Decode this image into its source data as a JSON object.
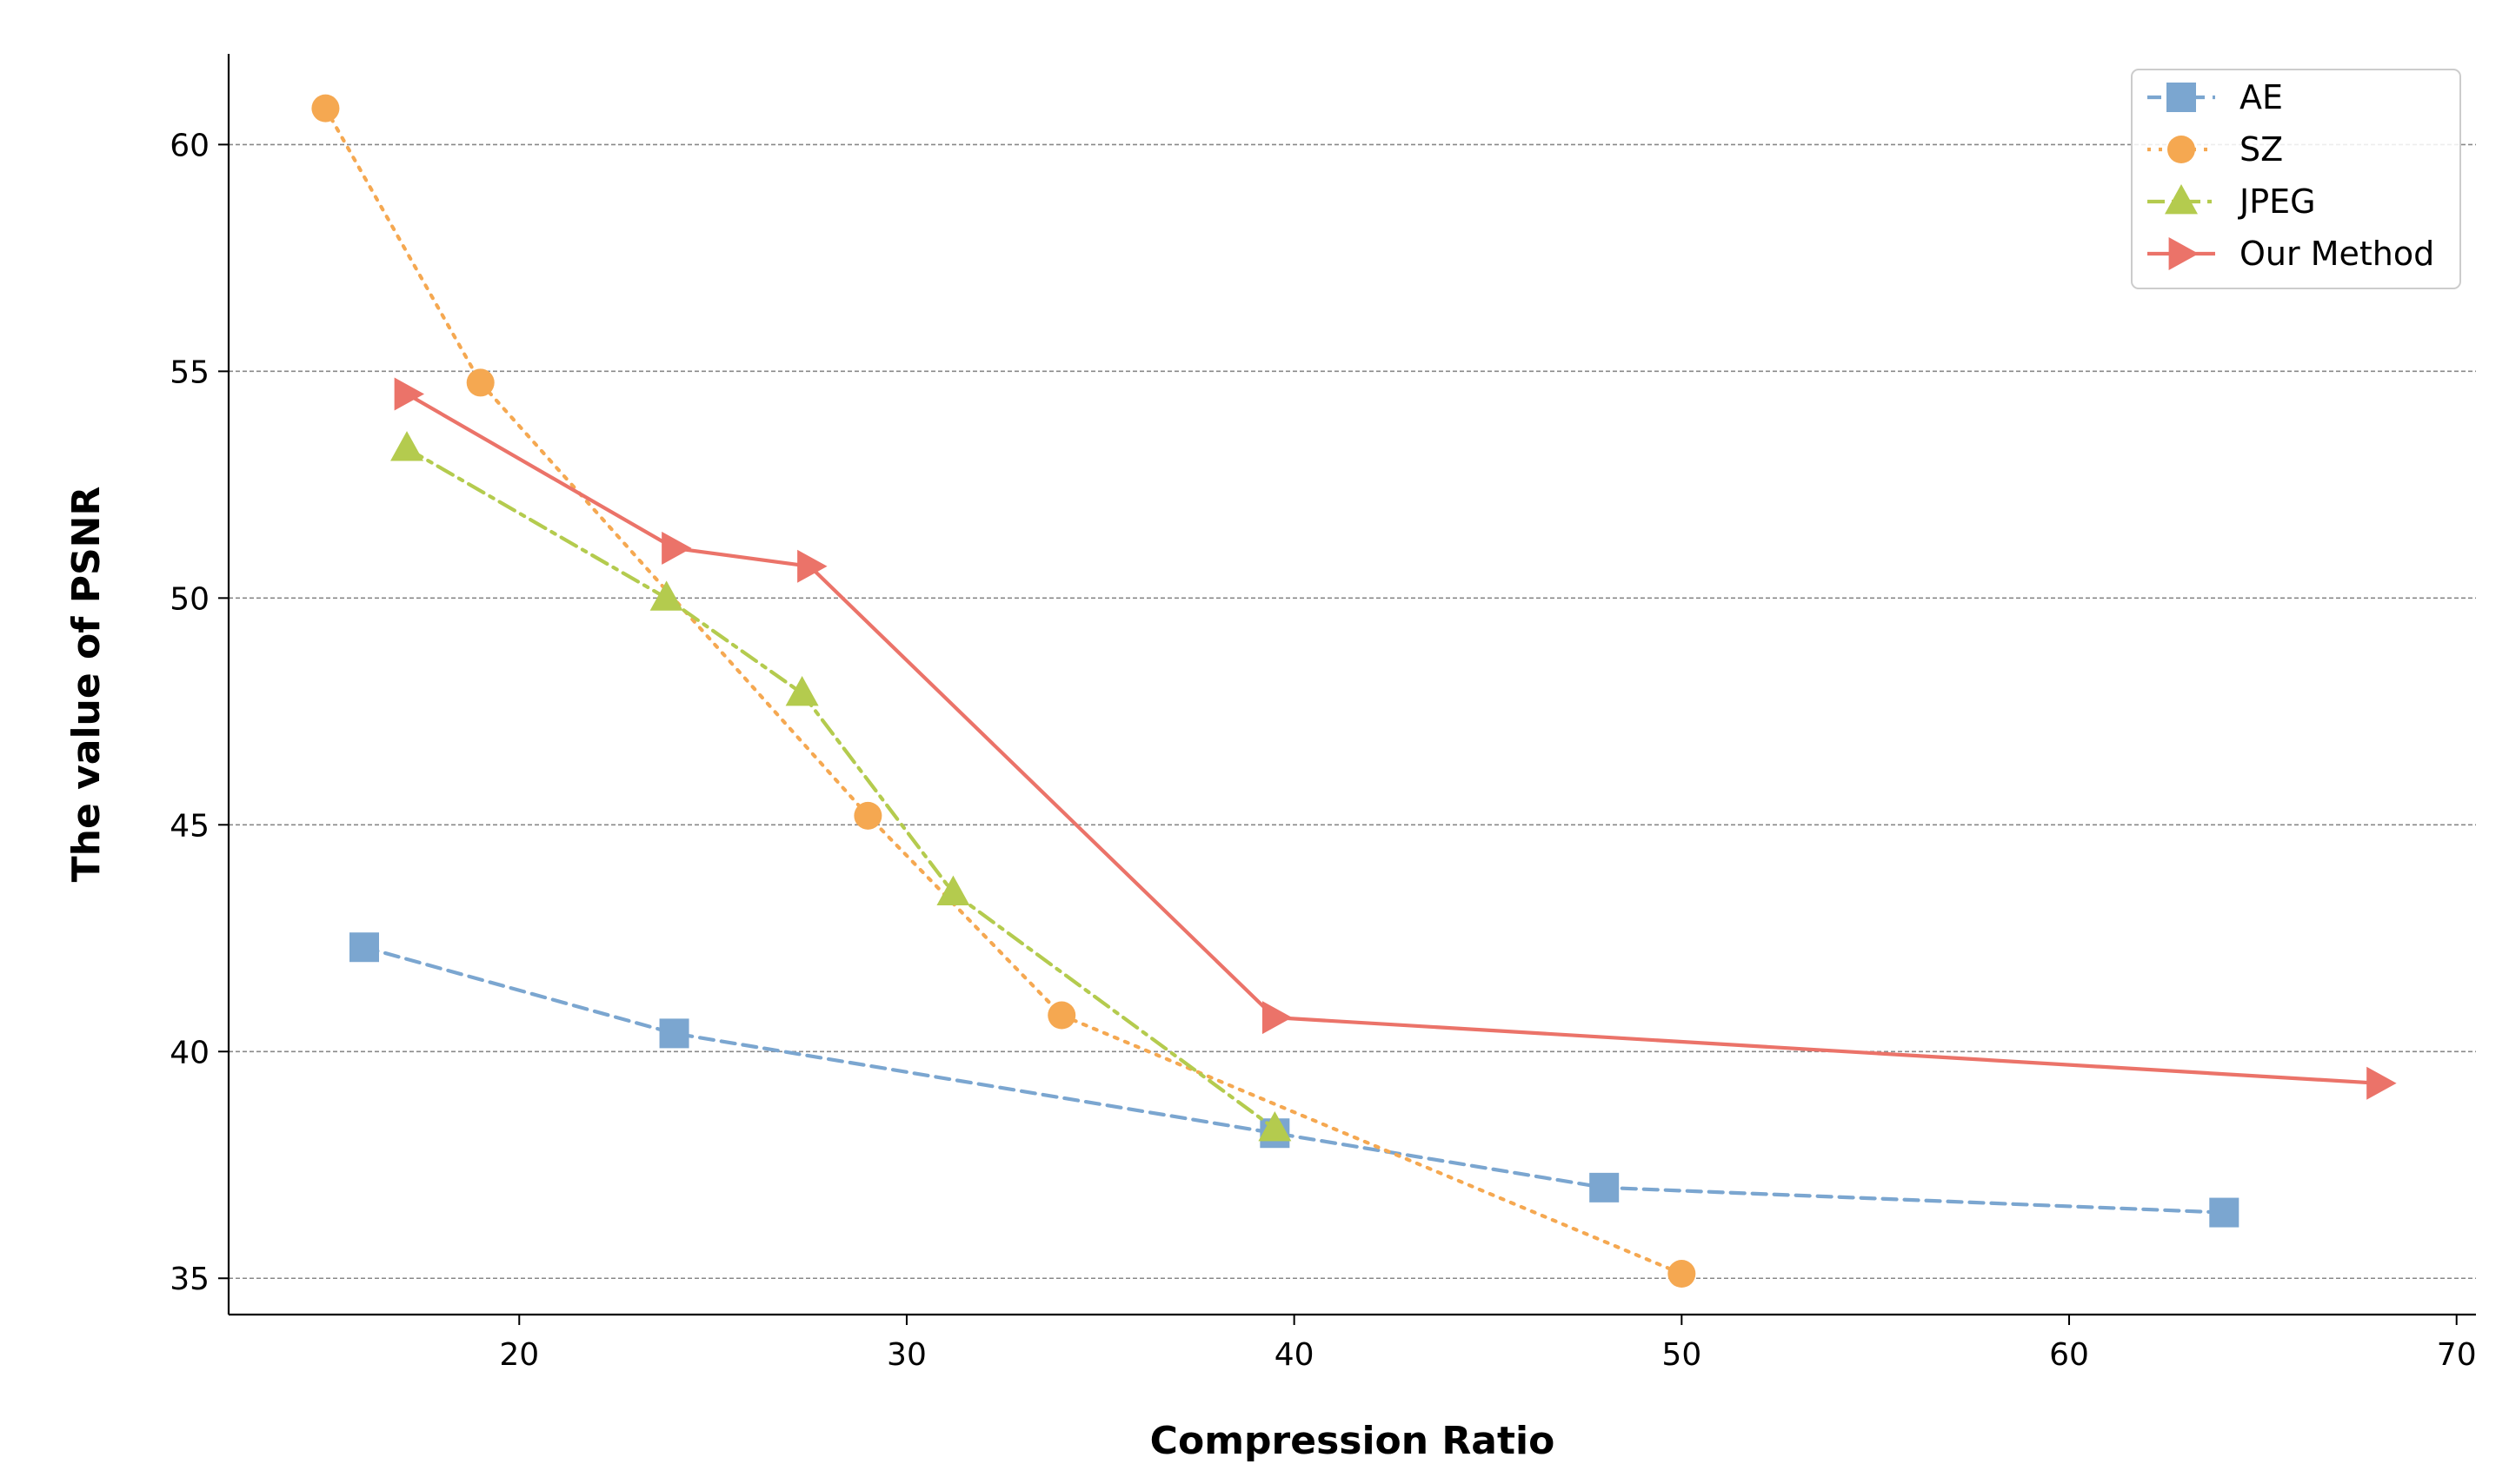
{
  "chart_data": {
    "type": "line",
    "title": "",
    "xlabel": "Compression Ratio",
    "ylabel": "The value of PSNR",
    "xlim": [
      12.5,
      70.5
    ],
    "ylim": [
      34.2,
      62
    ],
    "xticks": [
      20,
      30,
      40,
      50,
      60,
      70
    ],
    "yticks": [
      35,
      40,
      45,
      50,
      55,
      60
    ],
    "grid": "horizontal dashed",
    "legend_position": "top-right",
    "series": [
      {
        "name": "AE",
        "color": "#7BA6D0",
        "linestyle": "dashed",
        "marker": "square",
        "x": [
          16,
          24,
          39.5,
          48,
          64
        ],
        "y": [
          42.3,
          40.4,
          38.2,
          37.0,
          36.45
        ]
      },
      {
        "name": "SZ",
        "color": "#F5A851",
        "linestyle": "dotted",
        "marker": "circle",
        "x": [
          15,
          19,
          29,
          34,
          50
        ],
        "y": [
          60.8,
          54.75,
          45.2,
          40.8,
          35.1
        ]
      },
      {
        "name": "JPEG",
        "color": "#B4CB4E",
        "linestyle": "dashdot",
        "marker": "triangle-up",
        "x": [
          17.1,
          23.8,
          27.3,
          31.2,
          39.5
        ],
        "y": [
          53.3,
          50.0,
          47.9,
          43.5,
          38.3
        ]
      },
      {
        "name": "Our Method",
        "color": "#EB7369",
        "linestyle": "solid",
        "marker": "triangle-right",
        "x": [
          17.1,
          24.0,
          27.5,
          39.5,
          68
        ],
        "y": [
          54.5,
          51.1,
          50.7,
          40.75,
          39.3
        ]
      }
    ]
  }
}
